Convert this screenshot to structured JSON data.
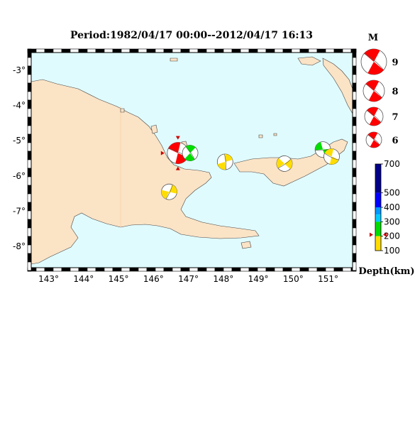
{
  "title": "Period:1982/04/17 00:00--2012/04/17 16:13",
  "map": {
    "colors": {
      "ocean": "#e0fbfd",
      "land": "#fbe3c6",
      "coast": "#444444",
      "frame": "#000000"
    },
    "lon_ticks": [
      "143°",
      "144°",
      "145°",
      "146°",
      "147°",
      "148°",
      "149°",
      "150°",
      "151°"
    ],
    "lat_ticks": [
      "-3°",
      "-4°",
      "-5°",
      "-6°",
      "-7°",
      "-8°"
    ]
  },
  "events": [
    {
      "name": "event-1",
      "lon": 146.7,
      "lat": -5.35,
      "mag": 8,
      "depth_range": "100-200",
      "color": "#ff0000",
      "selected": true
    },
    {
      "name": "event-2",
      "lon": 147.05,
      "lat": -5.35,
      "mag": 6,
      "depth_range": "200-300",
      "color": "#00dd00",
      "selected": false
    },
    {
      "name": "event-3",
      "lon": 148.05,
      "lat": -5.6,
      "mag": 6,
      "depth_range": "100-200",
      "color": "#ffdd00",
      "selected": false
    },
    {
      "name": "event-4",
      "lon": 146.45,
      "lat": -6.45,
      "mag": 6,
      "depth_range": "100-200",
      "color": "#ffdd00",
      "selected": false
    },
    {
      "name": "event-5",
      "lon": 149.75,
      "lat": -5.65,
      "mag": 6,
      "depth_range": "100-200",
      "color": "#ffdd00",
      "selected": false
    },
    {
      "name": "event-6",
      "lon": 150.85,
      "lat": -5.25,
      "mag": 6,
      "depth_range": "200-300",
      "color": "#00dd00",
      "selected": false
    },
    {
      "name": "event-7",
      "lon": 151.1,
      "lat": -5.45,
      "mag": 6,
      "depth_range": "100-200",
      "color": "#ffdd00",
      "selected": false
    }
  ],
  "legend": {
    "magnitude_title": "M",
    "magnitudes": [
      "9",
      "8",
      "7",
      "6"
    ],
    "depth_unit": "Depth(km)",
    "depth_ticks": [
      "700",
      "500",
      "400",
      "300",
      "200",
      "100"
    ],
    "depth_colors": [
      "#000088",
      "#0000ff",
      "#0099ff",
      "#00ccff",
      "#00dd00",
      "#ffdd00"
    ]
  }
}
